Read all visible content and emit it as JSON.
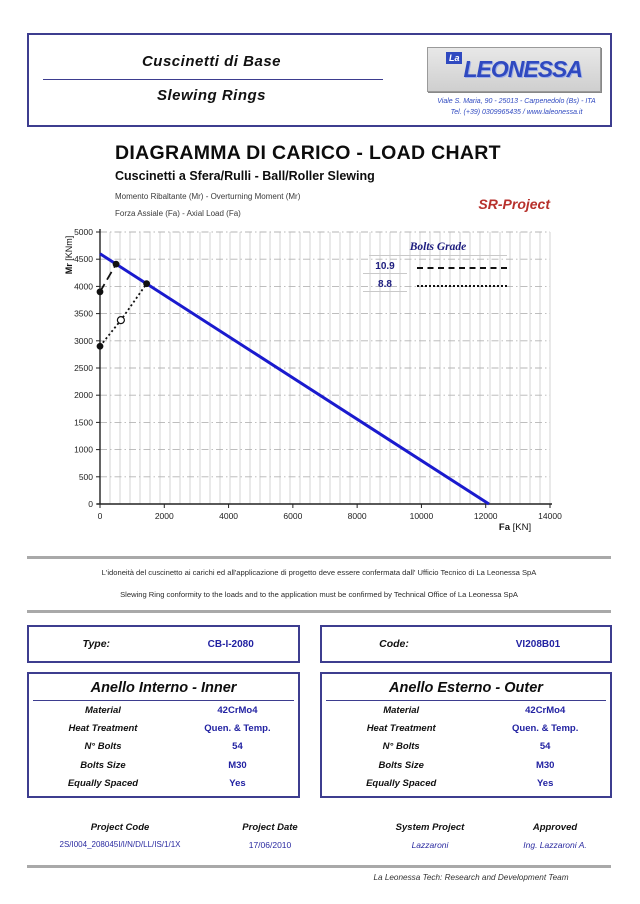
{
  "header": {
    "title_it": "Cuscinetti di Base",
    "title_en": "Slewing Rings",
    "logo": {
      "prefix": "La",
      "name": "LEONESSA"
    },
    "address_line1": "Viale S. Maria, 90 - 25013 - Carpenedolo (Bs) - ITA",
    "address_line2": "Tel. (+39) 0309965435 / www.laleonessa.it"
  },
  "titles": {
    "main": "DIAGRAMMA DI CARICO - LOAD CHART",
    "subtitle": "Cuscinetti a Sfera/Rulli - Ball/Roller Slewing",
    "note1": "Momento Ribaltante (Mr) - Overturning Moment (Mr)",
    "note2": "Forza Assiale (Fa) - Axial Load (Fa)",
    "project_label": "SR-Project"
  },
  "chart_data": {
    "type": "line",
    "xlabel": "Fa [KN]",
    "ylabel": "Mr [KNm]",
    "xlabel_parts": {
      "bold": "Fa",
      "rest": " [KN]"
    },
    "ylabel_parts": {
      "bold": "Mr",
      "rest": " [KNm]"
    },
    "xlim": [
      0,
      14000
    ],
    "ylim": [
      0,
      5000
    ],
    "x_ticks": [
      0,
      2000,
      4000,
      6000,
      8000,
      10000,
      12000,
      14000
    ],
    "y_ticks": [
      0,
      500,
      1000,
      1500,
      2000,
      2500,
      3000,
      3500,
      4000,
      4500,
      5000
    ],
    "grid": {
      "x_minor_divisions": 45,
      "y_step": 500
    },
    "legend": {
      "title": "Bolts Grade",
      "position": "top-right",
      "entries": [
        {
          "label": "10.9",
          "style": "dashed"
        },
        {
          "label": "8.8",
          "style": "dotted"
        }
      ]
    },
    "series": [
      {
        "name": "load-capacity-curve",
        "style": "solid",
        "color": "#1a1ace",
        "points": [
          [
            0,
            4600
          ],
          [
            12100,
            0
          ]
        ],
        "markers": []
      },
      {
        "name": "bolts-grade-10.9-limit",
        "style": "dashed",
        "color": "#111111",
        "points": [
          [
            0,
            3900
          ],
          [
            500,
            4410
          ]
        ],
        "markers": [
          {
            "x": 0,
            "y": 3900,
            "type": "filled"
          },
          {
            "x": 500,
            "y": 4410,
            "type": "filled"
          }
        ]
      },
      {
        "name": "bolts-grade-8.8-limit",
        "style": "dotted",
        "color": "#111111",
        "points": [
          [
            0,
            2900
          ],
          [
            650,
            3380
          ],
          [
            1450,
            4050
          ]
        ],
        "markers": [
          {
            "x": 0,
            "y": 2900,
            "type": "filled"
          },
          {
            "x": 650,
            "y": 3380,
            "type": "open"
          },
          {
            "x": 1450,
            "y": 4050,
            "type": "filled"
          }
        ]
      }
    ]
  },
  "disclaimer": {
    "line_it": "L'idoneità del cuscinetto ai carichi ed all'applicazione di progetto deve essere confermata dall' Ufficio Tecnico di La Leonessa SpA",
    "line_en": "Slewing Ring conformity to the loads and to the application must be confirmed by Technical Office of La Leonessa SpA"
  },
  "identification": {
    "type_label": "Type:",
    "type_value": "CB-I-2080",
    "code_label": "Code:",
    "code_value": "VI208B01"
  },
  "rings": {
    "inner": {
      "title": "Anello Interno - Inner",
      "rows": [
        {
          "label": "Material",
          "value": "42CrMo4"
        },
        {
          "label": "Heat Treatment",
          "value": "Quen. & Temp."
        },
        {
          "label": "N° Bolts",
          "value": "54"
        },
        {
          "label": "Bolts Size",
          "value": "M30"
        },
        {
          "label": "Equally Spaced",
          "value": "Yes"
        }
      ]
    },
    "outer": {
      "title": "Anello Esterno - Outer",
      "rows": [
        {
          "label": "Material",
          "value": "42CrMo4"
        },
        {
          "label": "Heat Treatment",
          "value": "Quen. & Temp."
        },
        {
          "label": "N° Bolts",
          "value": "54"
        },
        {
          "label": "Bolts Size",
          "value": "M30"
        },
        {
          "label": "Equally Spaced",
          "value": "Yes"
        }
      ]
    }
  },
  "footer": {
    "columns": [
      {
        "label": "Project Code",
        "value": "2S/I004_208045I/I/N/D/LL/IS/1/1X"
      },
      {
        "label": "Project Date",
        "value": "17/06/2010"
      },
      {
        "label": "System Project",
        "value": "Lazzaroni"
      },
      {
        "label": "Approved",
        "value": "Ing. Lazzaroni A."
      }
    ],
    "tagline": "La Leonessa Tech: Research and Development Team"
  }
}
